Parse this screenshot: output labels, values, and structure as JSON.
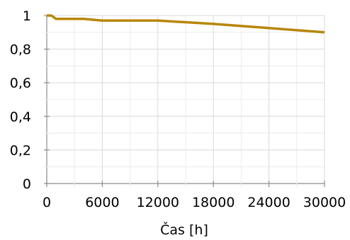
{
  "chart_data": {
    "type": "line",
    "title": "",
    "xlabel": "Čas [h]",
    "ylabel": "",
    "xlim": [
      0,
      30000
    ],
    "ylim": [
      0,
      1
    ],
    "x_ticks": [
      0,
      6000,
      12000,
      18000,
      24000,
      30000
    ],
    "x_tick_labels": [
      "0",
      "6000",
      "12000",
      "18000",
      "24000",
      "30000"
    ],
    "y_ticks": [
      0,
      0.2,
      0.4,
      0.6,
      0.8,
      1
    ],
    "y_tick_labels": [
      "0",
      "0,2",
      "0,4",
      "0,6",
      "0,8",
      "1"
    ],
    "grid": true,
    "legend": "none",
    "colors": {
      "series": "#b8860b",
      "major_grid": "#d9d9d9",
      "minor_grid": "#ececec",
      "axis": "#8c8c8c"
    },
    "series": [
      {
        "x": [
          0,
          500,
          1000,
          4000,
          6000,
          9000,
          12000,
          18000,
          24000,
          30000
        ],
        "values": [
          1.0,
          1.0,
          0.98,
          0.98,
          0.97,
          0.97,
          0.97,
          0.95,
          0.925,
          0.9
        ]
      }
    ]
  }
}
